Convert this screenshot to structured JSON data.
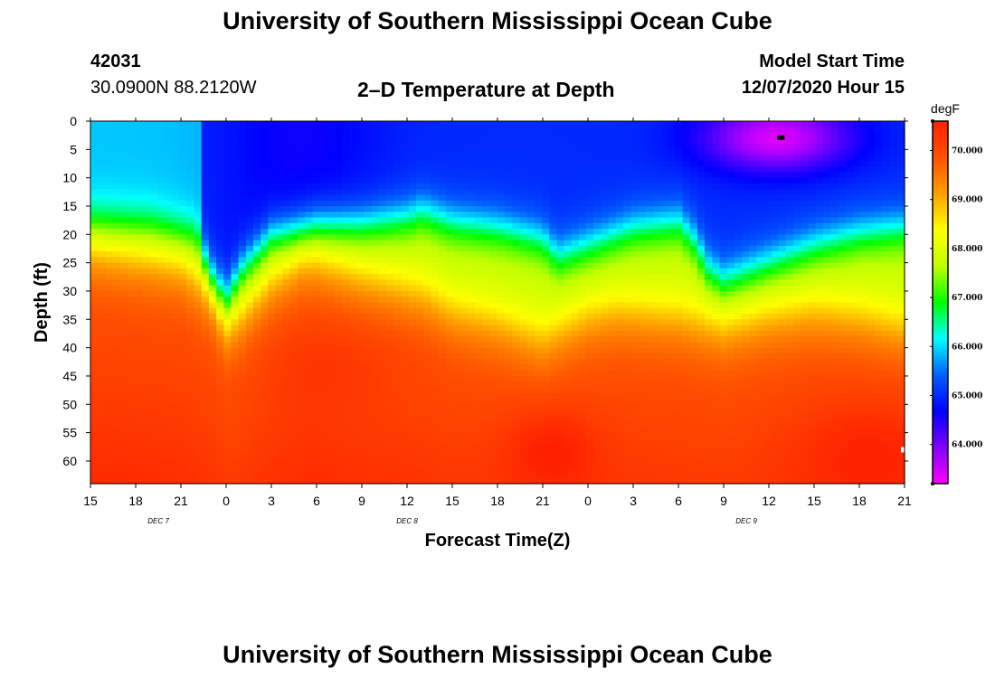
{
  "header": {
    "title": "University of Southern Mississippi Ocean Cube",
    "station_id": "42031",
    "station_coords": "30.0900N 88.2120W",
    "plot_title": "2–D Temperature at Depth",
    "model_start_label": "Model Start Time",
    "model_start_value": "12/07/2020 Hour 15"
  },
  "footer": {
    "title": "University of Southern Mississippi Ocean Cube"
  },
  "chart_data": {
    "type": "heatmap",
    "title": "2–D Temperature at Depth",
    "xlabel": "Forecast Time(Z)",
    "ylabel": "Depth (ft)",
    "units": "degF",
    "xlim_hours": [
      0,
      54
    ],
    "ylim_ft": [
      0,
      64
    ],
    "x_tick_labels": [
      "15",
      "18",
      "21",
      "0",
      "3",
      "6",
      "9",
      "12",
      "15",
      "18",
      "21",
      "0",
      "3",
      "6",
      "9",
      "12",
      "15",
      "18",
      "21"
    ],
    "x_tick_hours": [
      0,
      3,
      6,
      9,
      12,
      15,
      18,
      21,
      24,
      27,
      30,
      33,
      36,
      39,
      42,
      45,
      48,
      51,
      54
    ],
    "y_tick_labels": [
      "0",
      "5",
      "10",
      "15",
      "20",
      "25",
      "30",
      "35",
      "40",
      "45",
      "50",
      "55",
      "60"
    ],
    "y_tick_values": [
      0,
      5,
      10,
      15,
      20,
      25,
      30,
      35,
      40,
      45,
      50,
      55,
      60
    ],
    "date_labels": [
      {
        "label": "DEC 7",
        "hour": 4.5
      },
      {
        "label": "DEC 8",
        "hour": 21
      },
      {
        "label": "DEC 9",
        "hour": 43.5
      }
    ],
    "colorbar": {
      "range": [
        63.2,
        70.6
      ],
      "tick_labels": [
        "70.000",
        "69.000",
        "68.000",
        "67.000",
        "66.000",
        "65.000",
        "64.000"
      ],
      "tick_values": [
        70,
        69,
        68,
        67,
        66,
        65,
        64
      ],
      "colors": [
        "#ff00ff",
        "#8000ff",
        "#0000ff",
        "#0060ff",
        "#00ffff",
        "#00ff00",
        "#c0ff00",
        "#ffff00",
        "#ffa000",
        "#ff5000",
        "#ff2000"
      ]
    },
    "thermocline": {
      "hours": [
        0,
        4,
        7,
        8,
        9,
        10,
        12,
        15,
        18,
        21,
        22,
        24,
        27,
        30,
        31,
        33,
        36,
        39,
        40,
        41,
        42,
        43,
        45,
        48,
        51,
        54
      ],
      "depth_ft": [
        17.5,
        18,
        20,
        27,
        31,
        26,
        20,
        18,
        18,
        17,
        16,
        18,
        19,
        21,
        24,
        22,
        19,
        18,
        21,
        26,
        28,
        27,
        25,
        22,
        20,
        19
      ]
    },
    "deep_zone": {
      "hours": [
        0,
        6,
        8,
        9,
        10,
        12,
        14,
        15,
        18,
        22,
        24,
        27,
        30,
        33,
        35,
        39,
        42,
        45,
        48,
        51,
        54
      ],
      "depth_ft": [
        22,
        25,
        30,
        36,
        34,
        28,
        24,
        24,
        27,
        30,
        33,
        35,
        38,
        34,
        33,
        34,
        36,
        34,
        33,
        34,
        36
      ]
    }
  }
}
